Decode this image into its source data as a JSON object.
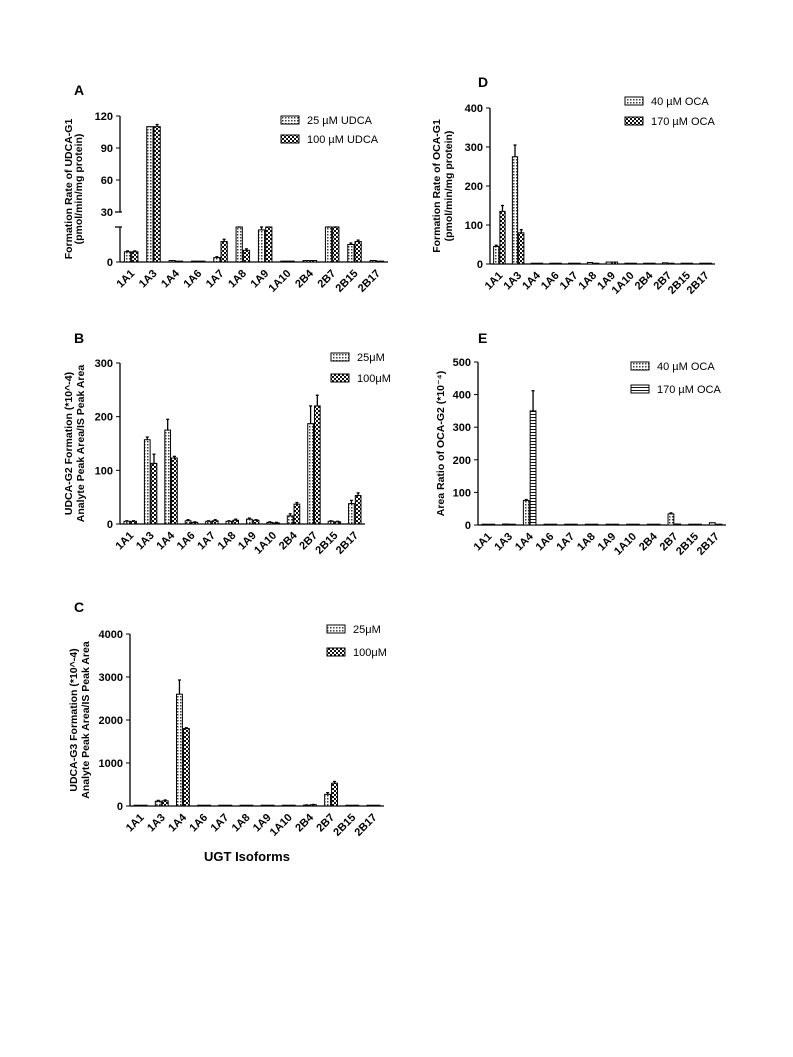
{
  "chart_data": [
    {
      "panel_letter": "A",
      "type": "bar",
      "categories": [
        "1A1",
        "1A3",
        "1A4",
        "1A6",
        "1A7",
        "1A8",
        "1A9",
        "1A10",
        "2B4",
        "2B7",
        "2B15",
        "2B17"
      ],
      "series": [
        {
          "name": "25 µM UDCA",
          "values": [
            3.5,
            110,
            0.5,
            0.3,
            1.5,
            12,
            11,
            0.3,
            0.5,
            12,
            6,
            0.5
          ],
          "errors": [
            0.3,
            0,
            0,
            0,
            0.3,
            1,
            1,
            0,
            0,
            1,
            0.5,
            0
          ]
        },
        {
          "name": "100 µM UDCA",
          "values": [
            3.5,
            110,
            0.3,
            0.3,
            7,
            4,
            16,
            0.3,
            0.5,
            18,
            7,
            0.3
          ],
          "errors": [
            0.3,
            2,
            0,
            0,
            0.8,
            0.5,
            0.8,
            0,
            0,
            0.8,
            0.5,
            0
          ]
        }
      ],
      "ylabel_lines": [
        "Formation Rate of UDCA-G1",
        "(pmol/min/mg protein)"
      ],
      "yticks": [
        "0",
        "30",
        "60",
        "90",
        "120"
      ],
      "axis_break": true,
      "ylim": [
        0,
        120
      ]
    },
    {
      "panel_letter": "B",
      "type": "bar",
      "categories": [
        "1A1",
        "1A3",
        "1A4",
        "1A6",
        "1A7",
        "1A8",
        "1A9",
        "1A10",
        "2B4",
        "2B7",
        "2B15",
        "2B17"
      ],
      "series": [
        {
          "name": "25μM",
          "values": [
            5,
            157,
            175,
            6,
            5,
            5,
            9,
            3,
            15,
            187,
            5,
            38
          ],
          "errors": [
            1,
            5,
            20,
            2,
            1,
            1,
            2,
            1,
            4,
            33,
            1,
            6
          ]
        },
        {
          "name": "100μM",
          "values": [
            5,
            113,
            123,
            3,
            6,
            7,
            7,
            2,
            37,
            220,
            4,
            53
          ],
          "errors": [
            1,
            17,
            3,
            1,
            2,
            2,
            1,
            1,
            3,
            20,
            1,
            5
          ]
        }
      ],
      "ylabel_lines": [
        "UDCA-G2 Formation (*10^-4)",
        "Analyte Peak Area/IS Peak Area"
      ],
      "yticks": [
        "0",
        "100",
        "200",
        "300"
      ],
      "ylim": [
        0,
        300
      ]
    },
    {
      "panel_letter": "C",
      "type": "bar",
      "categories": [
        "1A1",
        "1A3",
        "1A4",
        "1A6",
        "1A7",
        "1A8",
        "1A9",
        "1A10",
        "2B4",
        "2B7",
        "2B15",
        "2B17"
      ],
      "series": [
        {
          "name": "25μM",
          "values": [
            2,
            110,
            2600,
            5,
            5,
            3,
            3,
            3,
            20,
            270,
            5,
            3
          ],
          "errors": [
            0,
            20,
            330,
            0,
            0,
            0,
            0,
            0,
            5,
            40,
            0,
            0
          ]
        },
        {
          "name": "100μM",
          "values": [
            2,
            120,
            1800,
            5,
            3,
            3,
            3,
            3,
            30,
            530,
            5,
            3
          ],
          "errors": [
            0,
            20,
            20,
            0,
            0,
            0,
            0,
            0,
            5,
            40,
            0,
            0
          ]
        }
      ],
      "ylabel_lines": [
        "UDCA-G3 Formation (*10^-4)",
        "Analyte Peak Area/IS Peak Area"
      ],
      "xlabel": "UGT Isoforms",
      "yticks": [
        "0",
        "1000",
        "2000",
        "3000",
        "4000"
      ],
      "ylim": [
        0,
        4000
      ]
    },
    {
      "panel_letter": "D",
      "type": "bar",
      "categories": [
        "1A1",
        "1A3",
        "1A4",
        "1A6",
        "1A7",
        "1A8",
        "1A9",
        "1A10",
        "2B4",
        "2B7",
        "2B15",
        "2B17"
      ],
      "series": [
        {
          "name": "40 µM OCA",
          "values": [
            45,
            275,
            2,
            1,
            1,
            4,
            5,
            1,
            1,
            3,
            1,
            1
          ],
          "errors": [
            3,
            30,
            0,
            0,
            0,
            0,
            0,
            0,
            0,
            0,
            0,
            0
          ]
        },
        {
          "name": "170 µM  OCA",
          "values": [
            135,
            80,
            1,
            1,
            1,
            2,
            5,
            1,
            1,
            1,
            1,
            1
          ],
          "errors": [
            15,
            8,
            0,
            0,
            0,
            0,
            0,
            0,
            0,
            0,
            0,
            0
          ]
        }
      ],
      "ylabel_lines": [
        "Formation Rate of OCA-G1",
        "(pmol/min/mg protein)"
      ],
      "yticks": [
        "0",
        "100",
        "200",
        "300",
        "400"
      ],
      "ylim": [
        0,
        400
      ]
    },
    {
      "panel_letter": "E",
      "type": "bar",
      "categories": [
        "1A1",
        "1A3",
        "1A4",
        "1A6",
        "1A7",
        "1A8",
        "1A9",
        "1A10",
        "2B4",
        "2B7",
        "2B15",
        "2B17"
      ],
      "series": [
        {
          "name": "40 µM  OCA",
          "values": [
            1,
            3,
            75,
            2,
            2,
            2,
            1,
            1,
            1,
            34,
            2,
            7
          ],
          "errors": [
            0,
            0,
            3,
            0,
            0,
            0,
            0,
            0,
            0,
            3,
            0,
            0
          ]
        },
        {
          "name": "170 µM  OCA",
          "values": [
            0,
            1,
            350,
            1,
            1,
            1,
            1,
            1,
            1,
            3,
            1,
            1
          ],
          "errors": [
            0,
            0,
            62,
            0,
            0,
            0,
            0,
            0,
            0,
            0,
            0,
            0
          ]
        }
      ],
      "ylabel_lines": [
        "Area Ratio of OCA-G2 (*10⁻⁴)"
      ],
      "yticks": [
        "0",
        "100",
        "200",
        "300",
        "400",
        "500"
      ],
      "ylim": [
        0,
        500
      ]
    }
  ],
  "colors": {
    "ink": "#000000",
    "fill_light": "#c8c8c8",
    "fill_dark": "#2a2a2a",
    "fill_white": "#ffffff",
    "background": "#ffffff"
  }
}
